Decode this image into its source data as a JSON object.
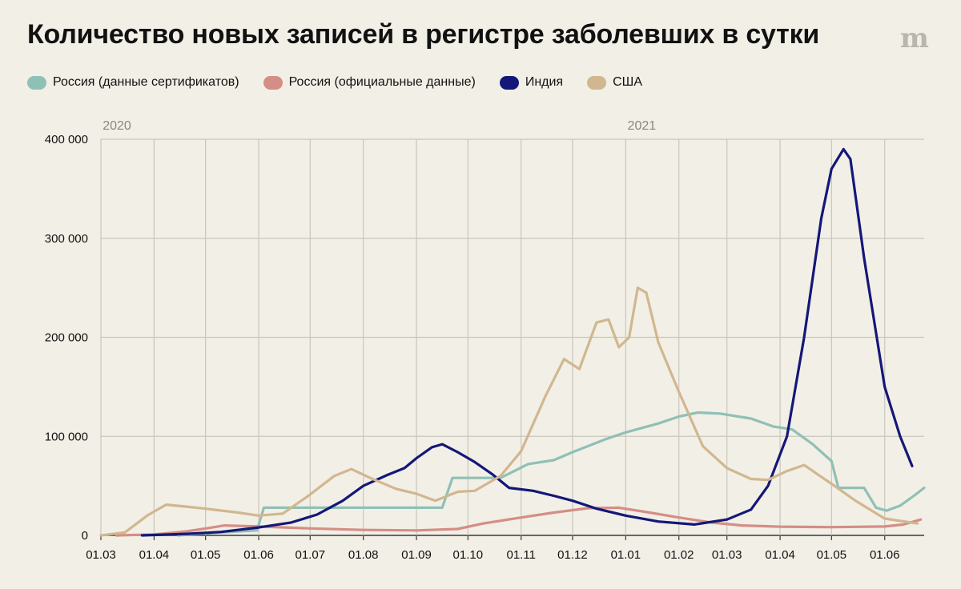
{
  "title": "Количество новых записей в регистре заболевших в сутки",
  "logo": "m",
  "legend": [
    {
      "label": "Россия (данные сертификатов)",
      "color": "#8fc0b6"
    },
    {
      "label": "Россия (официальные данные)",
      "color": "#d48e85"
    },
    {
      "label": "Индия",
      "color": "#141778"
    },
    {
      "label": "США",
      "color": "#d1b78f"
    }
  ],
  "chart_data": {
    "type": "line",
    "title": "Количество новых записей в регистре заболевших в сутки",
    "x_axis": {
      "type": "date",
      "range": [
        "2020-03-01",
        "2021-06-24"
      ],
      "ticks": [
        {
          "date": "2020-03-01",
          "label": "01.03"
        },
        {
          "date": "2020-04-01",
          "label": "01.04"
        },
        {
          "date": "2020-05-01",
          "label": "01.05"
        },
        {
          "date": "2020-06-01",
          "label": "01.06"
        },
        {
          "date": "2020-07-01",
          "label": "01.07"
        },
        {
          "date": "2020-08-01",
          "label": "01.08"
        },
        {
          "date": "2020-09-01",
          "label": "01.09"
        },
        {
          "date": "2020-10-01",
          "label": "01.10"
        },
        {
          "date": "2020-11-01",
          "label": "01.11"
        },
        {
          "date": "2020-12-01",
          "label": "01.12"
        },
        {
          "date": "2021-01-01",
          "label": "01.01"
        },
        {
          "date": "2021-02-01",
          "label": "01.02"
        },
        {
          "date": "2021-03-01",
          "label": "01.03"
        },
        {
          "date": "2021-04-01",
          "label": "01.04"
        },
        {
          "date": "2021-05-01",
          "label": "01.05"
        },
        {
          "date": "2021-06-01",
          "label": "01.06"
        }
      ],
      "year_labels": [
        {
          "date": "2020-03-01",
          "label": "2020"
        },
        {
          "date": "2021-01-01",
          "label": "2021"
        }
      ]
    },
    "y_axis": {
      "range": [
        0,
        400000
      ],
      "ticks": [
        {
          "value": 0,
          "label": "0"
        },
        {
          "value": 100000,
          "label": "100 000"
        },
        {
          "value": 200000,
          "label": "200 000"
        },
        {
          "value": 300000,
          "label": "300 000"
        },
        {
          "value": 400000,
          "label": "400 000"
        }
      ]
    },
    "grid": true,
    "legend_position": "top-left",
    "series": [
      {
        "name": "Россия (данные сертификатов)",
        "color": "#8fc0b6",
        "points": [
          [
            "2020-04-15",
            0
          ],
          [
            "2020-05-10",
            3000
          ],
          [
            "2020-05-31",
            5000
          ],
          [
            "2020-06-04",
            28000
          ],
          [
            "2020-07-20",
            28000
          ],
          [
            "2020-09-16",
            28000
          ],
          [
            "2020-09-22",
            58000
          ],
          [
            "2020-10-20",
            58000
          ],
          [
            "2020-11-05",
            72000
          ],
          [
            "2020-11-20",
            76000
          ],
          [
            "2020-12-01",
            84000
          ],
          [
            "2020-12-20",
            97000
          ],
          [
            "2021-01-01",
            104000
          ],
          [
            "2021-01-20",
            113000
          ],
          [
            "2021-02-01",
            120000
          ],
          [
            "2021-02-12",
            124000
          ],
          [
            "2021-02-25",
            123000
          ],
          [
            "2021-03-15",
            118000
          ],
          [
            "2021-03-28",
            110000
          ],
          [
            "2021-04-08",
            107000
          ],
          [
            "2021-04-20",
            92000
          ],
          [
            "2021-05-01",
            75000
          ],
          [
            "2021-05-05",
            48000
          ],
          [
            "2021-05-20",
            48000
          ],
          [
            "2021-05-27",
            28000
          ],
          [
            "2021-06-02",
            25000
          ],
          [
            "2021-06-10",
            30000
          ],
          [
            "2021-06-18",
            40000
          ],
          [
            "2021-06-24",
            48000
          ]
        ]
      },
      {
        "name": "Россия (официальные данные)",
        "color": "#d48e85",
        "points": [
          [
            "2020-03-10",
            0
          ],
          [
            "2020-04-01",
            1000
          ],
          [
            "2020-04-20",
            4000
          ],
          [
            "2020-05-05",
            8000
          ],
          [
            "2020-05-12",
            10000
          ],
          [
            "2020-06-01",
            9000
          ],
          [
            "2020-07-01",
            7000
          ],
          [
            "2020-08-01",
            5500
          ],
          [
            "2020-09-01",
            5000
          ],
          [
            "2020-09-25",
            6500
          ],
          [
            "2020-10-10",
            12000
          ],
          [
            "2020-11-01",
            18000
          ],
          [
            "2020-11-20",
            23000
          ],
          [
            "2020-12-10",
            27500
          ],
          [
            "2020-12-28",
            28000
          ],
          [
            "2021-01-15",
            23000
          ],
          [
            "2021-02-01",
            18000
          ],
          [
            "2021-02-20",
            13000
          ],
          [
            "2021-03-10",
            10000
          ],
          [
            "2021-04-01",
            8800
          ],
          [
            "2021-05-01",
            8300
          ],
          [
            "2021-06-01",
            9000
          ],
          [
            "2021-06-12",
            11000
          ],
          [
            "2021-06-22",
            16000
          ]
        ]
      },
      {
        "name": "Индия",
        "color": "#141778",
        "points": [
          [
            "2020-03-25",
            0
          ],
          [
            "2020-04-20",
            1500
          ],
          [
            "2020-05-10",
            3500
          ],
          [
            "2020-06-01",
            8000
          ],
          [
            "2020-06-20",
            13000
          ],
          [
            "2020-07-05",
            21000
          ],
          [
            "2020-07-20",
            35000
          ],
          [
            "2020-08-01",
            50000
          ],
          [
            "2020-08-15",
            61000
          ],
          [
            "2020-08-25",
            68000
          ],
          [
            "2020-09-01",
            78000
          ],
          [
            "2020-09-10",
            89000
          ],
          [
            "2020-09-16",
            92000
          ],
          [
            "2020-09-25",
            84000
          ],
          [
            "2020-10-05",
            74000
          ],
          [
            "2020-10-15",
            62000
          ],
          [
            "2020-10-25",
            48000
          ],
          [
            "2020-11-08",
            45000
          ],
          [
            "2020-11-20",
            40000
          ],
          [
            "2020-12-01",
            35000
          ],
          [
            "2020-12-15",
            27000
          ],
          [
            "2021-01-01",
            20000
          ],
          [
            "2021-01-20",
            14000
          ],
          [
            "2021-02-10",
            11000
          ],
          [
            "2021-03-01",
            16000
          ],
          [
            "2021-03-15",
            26000
          ],
          [
            "2021-03-25",
            50000
          ],
          [
            "2021-04-05",
            100000
          ],
          [
            "2021-04-15",
            200000
          ],
          [
            "2021-04-25",
            320000
          ],
          [
            "2021-05-01",
            370000
          ],
          [
            "2021-05-08",
            390000
          ],
          [
            "2021-05-12",
            380000
          ],
          [
            "2021-05-20",
            280000
          ],
          [
            "2021-06-01",
            150000
          ],
          [
            "2021-06-10",
            100000
          ],
          [
            "2021-06-17",
            70000
          ]
        ]
      },
      {
        "name": "США",
        "color": "#d1b78f",
        "points": [
          [
            "2020-03-01",
            0
          ],
          [
            "2020-03-15",
            3000
          ],
          [
            "2020-03-28",
            20000
          ],
          [
            "2020-04-08",
            31000
          ],
          [
            "2020-04-20",
            29000
          ],
          [
            "2020-05-01",
            27000
          ],
          [
            "2020-05-20",
            23000
          ],
          [
            "2020-06-01",
            20000
          ],
          [
            "2020-06-15",
            22000
          ],
          [
            "2020-06-30",
            40000
          ],
          [
            "2020-07-15",
            60000
          ],
          [
            "2020-07-25",
            67000
          ],
          [
            "2020-08-05",
            58000
          ],
          [
            "2020-08-20",
            47000
          ],
          [
            "2020-09-01",
            42000
          ],
          [
            "2020-09-12",
            35000
          ],
          [
            "2020-09-25",
            44000
          ],
          [
            "2020-10-05",
            45000
          ],
          [
            "2020-10-20",
            60000
          ],
          [
            "2020-11-01",
            85000
          ],
          [
            "2020-11-15",
            140000
          ],
          [
            "2020-11-26",
            178000
          ],
          [
            "2020-12-05",
            168000
          ],
          [
            "2020-12-15",
            215000
          ],
          [
            "2020-12-22",
            218000
          ],
          [
            "2020-12-28",
            190000
          ],
          [
            "2021-01-03",
            200000
          ],
          [
            "2021-01-08",
            250000
          ],
          [
            "2021-01-13",
            245000
          ],
          [
            "2021-01-20",
            195000
          ],
          [
            "2021-02-01",
            145000
          ],
          [
            "2021-02-15",
            90000
          ],
          [
            "2021-03-01",
            68000
          ],
          [
            "2021-03-15",
            57000
          ],
          [
            "2021-03-25",
            56000
          ],
          [
            "2021-04-05",
            65000
          ],
          [
            "2021-04-15",
            71000
          ],
          [
            "2021-05-01",
            52000
          ],
          [
            "2021-05-15",
            35000
          ],
          [
            "2021-06-01",
            17000
          ],
          [
            "2021-06-20",
            12000
          ]
        ]
      }
    ]
  }
}
